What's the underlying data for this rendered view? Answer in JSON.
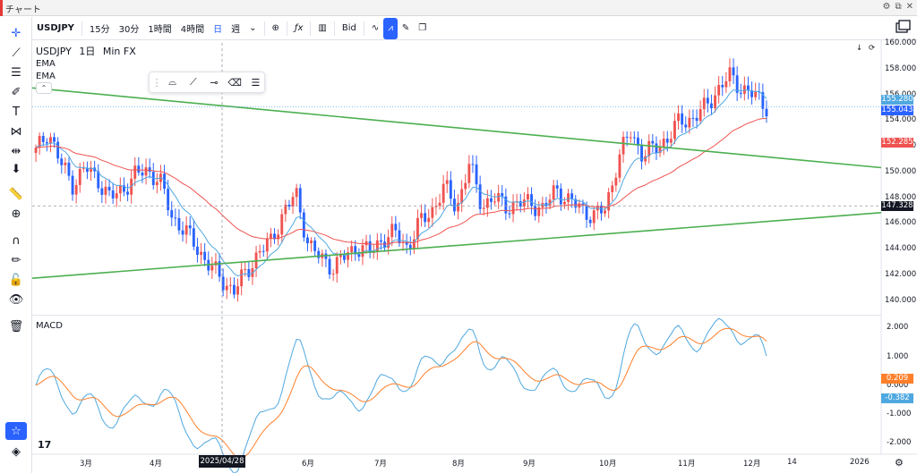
{
  "window": {
    "title": "チャート"
  },
  "toolbar": {
    "symbol": "USDJPY",
    "intervals": [
      {
        "label": "15分",
        "active": false
      },
      {
        "label": "30分",
        "active": false
      },
      {
        "label": "1時間",
        "active": false
      },
      {
        "label": "4時間",
        "active": false
      },
      {
        "label": "日",
        "active": true
      },
      {
        "label": "週",
        "active": false
      }
    ],
    "price_source": "Bid"
  },
  "legend": {
    "symbol": "USDJPY",
    "interval": "1日",
    "source": "Min FX",
    "indicators": [
      "EMA",
      "EMA"
    ],
    "macd": "MACD"
  },
  "price_axis": {
    "ticks": [
      "160.000",
      "158.000",
      "156.000",
      "154.000",
      "152.000",
      "150.000",
      "148.000",
      "146.000",
      "144.000",
      "142.000",
      "140.000"
    ],
    "macd_ticks": [
      "2.000",
      "1.000",
      "0.000",
      "-1.000",
      "-2.000"
    ],
    "labels": {
      "ema_fast": "155.280",
      "last": "155.043",
      "ema_slow": "152.285",
      "cursor": "147.328",
      "macd_signal": "0.209",
      "macd_line": "-0.382"
    }
  },
  "time_axis": {
    "ticks": [
      "3月",
      "4月",
      "6月",
      "7月",
      "8月",
      "9月",
      "10月",
      "11月",
      "12月",
      "14",
      "2026"
    ],
    "cursor": "2025/04/28"
  },
  "colors": {
    "up": "#26a69a",
    "up_candle": "#ef5350",
    "down_candle": "#2962ff",
    "ema_fast": "#4fa8e0",
    "ema_slow": "#ef5350",
    "trendline": "#4caf50",
    "macd_line": "#4fa8e0",
    "signal_line": "#ff7f2a"
  },
  "chart_data": {
    "type": "candlestick",
    "price_range": [
      139,
      160
    ],
    "macd_range": [
      -2.3,
      2.2
    ],
    "ohlc_anchor_closes": [
      151.5,
      153.2,
      150.6,
      149.0,
      150.3,
      149.4,
      147.9,
      148.6,
      149.7,
      150.1,
      149.3,
      146.4,
      145.5,
      144.0,
      142.8,
      141.5,
      140.8,
      142.1,
      143.8,
      144.5,
      146.9,
      148.2,
      144.4,
      143.2,
      142.6,
      143.4,
      144.2,
      143.7,
      144.8,
      145.2,
      144.1,
      146.0,
      147.0,
      148.8,
      147.2,
      150.6,
      147.4,
      147.9,
      147.3,
      147.5,
      147.6,
      147.0,
      148.7,
      147.7,
      147.2,
      146.5,
      147.1,
      150.9,
      153.1,
      151.3,
      151.8,
      152.6,
      153.9,
      154.1,
      154.9,
      156.3,
      157.4,
      156.5,
      155.9,
      155.1
    ]
  }
}
